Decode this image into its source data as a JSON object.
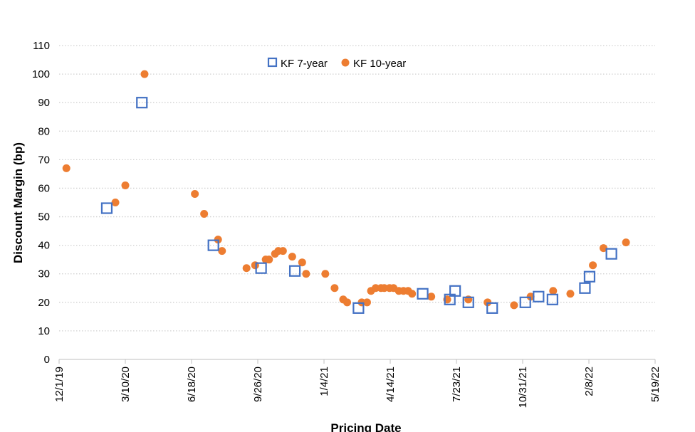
{
  "chart_data": {
    "type": "scatter",
    "xlabel": "Pricing Date",
    "ylabel": "Discount Margin (bp)",
    "xlim": [
      "2019-12-01",
      "2022-05-19"
    ],
    "ylim": [
      0,
      110
    ],
    "y_ticks": [
      0,
      10,
      20,
      30,
      40,
      50,
      60,
      70,
      80,
      90,
      100,
      110
    ],
    "x_ticks": [
      {
        "date": "2019-12-01",
        "label": "12/1/19"
      },
      {
        "date": "2020-03-10",
        "label": "3/10/20"
      },
      {
        "date": "2020-06-18",
        "label": "6/18/20"
      },
      {
        "date": "2020-09-26",
        "label": "9/26/20"
      },
      {
        "date": "2021-01-04",
        "label": "1/4/21"
      },
      {
        "date": "2021-04-14",
        "label": "4/14/21"
      },
      {
        "date": "2021-07-23",
        "label": "7/23/21"
      },
      {
        "date": "2021-10-31",
        "label": "10/31/21"
      },
      {
        "date": "2022-02-08",
        "label": "2/8/22"
      },
      {
        "date": "2022-05-19",
        "label": "5/19/22"
      }
    ],
    "grid": "horizontal dotted",
    "legend": "top-center",
    "series": [
      {
        "name": "KF 7-year",
        "marker": "hollow-square",
        "color": "#4472C4",
        "points": [
          [
            "2020-02-11",
            53
          ],
          [
            "2020-04-04",
            90
          ],
          [
            "2020-07-21",
            40
          ],
          [
            "2020-10-01",
            32
          ],
          [
            "2020-11-21",
            31
          ],
          [
            "2021-02-25",
            18
          ],
          [
            "2021-06-02",
            23
          ],
          [
            "2021-07-13",
            21
          ],
          [
            "2021-07-21",
            24
          ],
          [
            "2021-08-10",
            20
          ],
          [
            "2021-09-15",
            18
          ],
          [
            "2021-11-04",
            20
          ],
          [
            "2021-11-24",
            22
          ],
          [
            "2021-12-15",
            21
          ],
          [
            "2022-02-02",
            25
          ],
          [
            "2022-02-09",
            29
          ],
          [
            "2022-03-14",
            37
          ]
        ]
      },
      {
        "name": "KF 10-year",
        "marker": "filled-circle",
        "color": "#ED7D31",
        "points": [
          [
            "2019-12-12",
            67
          ],
          [
            "2020-02-24",
            55
          ],
          [
            "2020-03-10",
            61
          ],
          [
            "2020-04-08",
            100
          ],
          [
            "2020-06-23",
            58
          ],
          [
            "2020-07-07",
            51
          ],
          [
            "2020-07-28",
            42
          ],
          [
            "2020-08-03",
            38
          ],
          [
            "2020-09-09",
            32
          ],
          [
            "2020-09-22",
            33
          ],
          [
            "2020-10-08",
            35
          ],
          [
            "2020-10-13",
            35
          ],
          [
            "2020-10-22",
            37
          ],
          [
            "2020-10-27",
            38
          ],
          [
            "2020-11-03",
            38
          ],
          [
            "2020-11-17",
            36
          ],
          [
            "2020-12-02",
            34
          ],
          [
            "2020-12-08",
            30
          ],
          [
            "2021-01-06",
            30
          ],
          [
            "2021-01-20",
            25
          ],
          [
            "2021-02-02",
            21
          ],
          [
            "2021-02-08",
            20
          ],
          [
            "2021-03-02",
            20
          ],
          [
            "2021-03-10",
            20
          ],
          [
            "2021-03-16",
            24
          ],
          [
            "2021-03-23",
            25
          ],
          [
            "2021-03-31",
            25
          ],
          [
            "2021-04-05",
            25
          ],
          [
            "2021-04-13",
            25
          ],
          [
            "2021-04-19",
            25
          ],
          [
            "2021-04-27",
            24
          ],
          [
            "2021-05-04",
            24
          ],
          [
            "2021-05-11",
            24
          ],
          [
            "2021-05-17",
            23
          ],
          [
            "2021-06-15",
            22
          ],
          [
            "2021-07-09",
            21
          ],
          [
            "2021-08-10",
            21
          ],
          [
            "2021-09-08",
            20
          ],
          [
            "2021-10-18",
            19
          ],
          [
            "2021-11-12",
            22
          ],
          [
            "2021-12-16",
            24
          ],
          [
            "2022-01-11",
            23
          ],
          [
            "2022-02-14",
            33
          ],
          [
            "2022-03-02",
            39
          ],
          [
            "2022-04-05",
            41
          ]
        ]
      }
    ]
  }
}
